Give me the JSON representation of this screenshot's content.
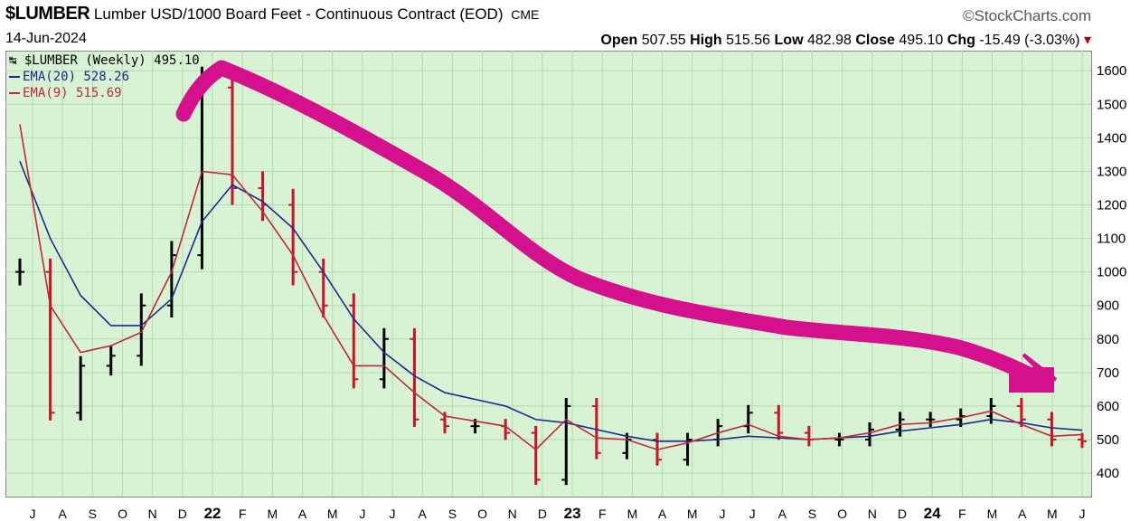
{
  "header": {
    "symbol": "$LUMBER",
    "description": "Lumber USD/1000 Board Feet - Continuous Contract (EOD)",
    "exchange": "CME",
    "brand": "©StockCharts.com",
    "date": "14-Jun-2024",
    "open_label": "Open",
    "open": "507.55",
    "high_label": "High",
    "high": "515.56",
    "low_label": "Low",
    "low": "482.98",
    "close_label": "Close",
    "close": "495.10",
    "chg_label": "Chg",
    "chg": "-15.49 (-3.03%)",
    "chg_arrow": "▾"
  },
  "legend": {
    "price": "$LUMBER (Weekly) 495.10",
    "ema20": "EMA(20) 528.26",
    "ema9": "EMA(9) 515.69"
  },
  "colors": {
    "background": "#d8f2d4",
    "grid": "#b7d9b2",
    "up_bar": "#000000",
    "down_bar": "#d0102a",
    "ema20": "#1c2a8c",
    "ema9": "#c0283a",
    "annotation_arrow": "#d4108c"
  },
  "chart_data": {
    "type": "line",
    "interval": "weekly",
    "ylim": [
      330,
      1660
    ],
    "y_ticks": [
      400,
      500,
      600,
      700,
      800,
      900,
      1000,
      1100,
      1200,
      1300,
      1400,
      1500,
      1600
    ],
    "x_tick_labels": [
      "J",
      "A",
      "S",
      "O",
      "N",
      "D",
      "22",
      "F",
      "M",
      "A",
      "M",
      "J",
      "J",
      "A",
      "S",
      "O",
      "N",
      "D",
      "23",
      "F",
      "M",
      "A",
      "M",
      "J",
      "J",
      "A",
      "S",
      "O",
      "N",
      "D",
      "24",
      "F",
      "M",
      "A",
      "M",
      "J"
    ],
    "grid": true,
    "price_series": {
      "name": "$LUMBER",
      "dates": [
        "2021-07",
        "2021-08",
        "2021-09",
        "2021-10",
        "2021-11",
        "2021-12",
        "2022-01",
        "2022-02",
        "2022-03",
        "2022-04",
        "2022-05",
        "2022-06",
        "2022-07",
        "2022-08",
        "2022-09",
        "2022-10",
        "2022-11",
        "2022-12",
        "2023-01",
        "2023-02",
        "2023-03",
        "2023-04",
        "2023-05",
        "2023-06",
        "2023-07",
        "2023-08",
        "2023-09",
        "2023-10",
        "2023-11",
        "2023-12",
        "2024-01",
        "2024-02",
        "2024-03",
        "2024-04",
        "2024-05",
        "2024-06"
      ],
      "close": [
        1000,
        580,
        720,
        750,
        900,
        1050,
        1550,
        1250,
        1200,
        1000,
        900,
        680,
        800,
        560,
        540,
        540,
        520,
        380,
        600,
        460,
        500,
        440,
        500,
        540,
        580,
        520,
        500,
        500,
        530,
        560,
        560,
        570,
        600,
        560,
        500,
        495
      ]
    },
    "series": [
      {
        "name": "EMA(20)",
        "values": [
          1330,
          1100,
          930,
          840,
          840,
          920,
          1150,
          1260,
          1210,
          1130,
          1000,
          860,
          760,
          690,
          640,
          620,
          600,
          560,
          550,
          530,
          510,
          495,
          495,
          500,
          510,
          505,
          500,
          505,
          510,
          525,
          535,
          545,
          560,
          550,
          535,
          528
        ]
      },
      {
        "name": "EMA(9)",
        "values": [
          1440,
          900,
          760,
          780,
          820,
          1000,
          1300,
          1290,
          1180,
          1050,
          870,
          720,
          720,
          640,
          570,
          555,
          540,
          470,
          560,
          505,
          500,
          470,
          490,
          520,
          545,
          510,
          500,
          505,
          520,
          545,
          550,
          565,
          585,
          545,
          510,
          515
        ]
      }
    ]
  }
}
